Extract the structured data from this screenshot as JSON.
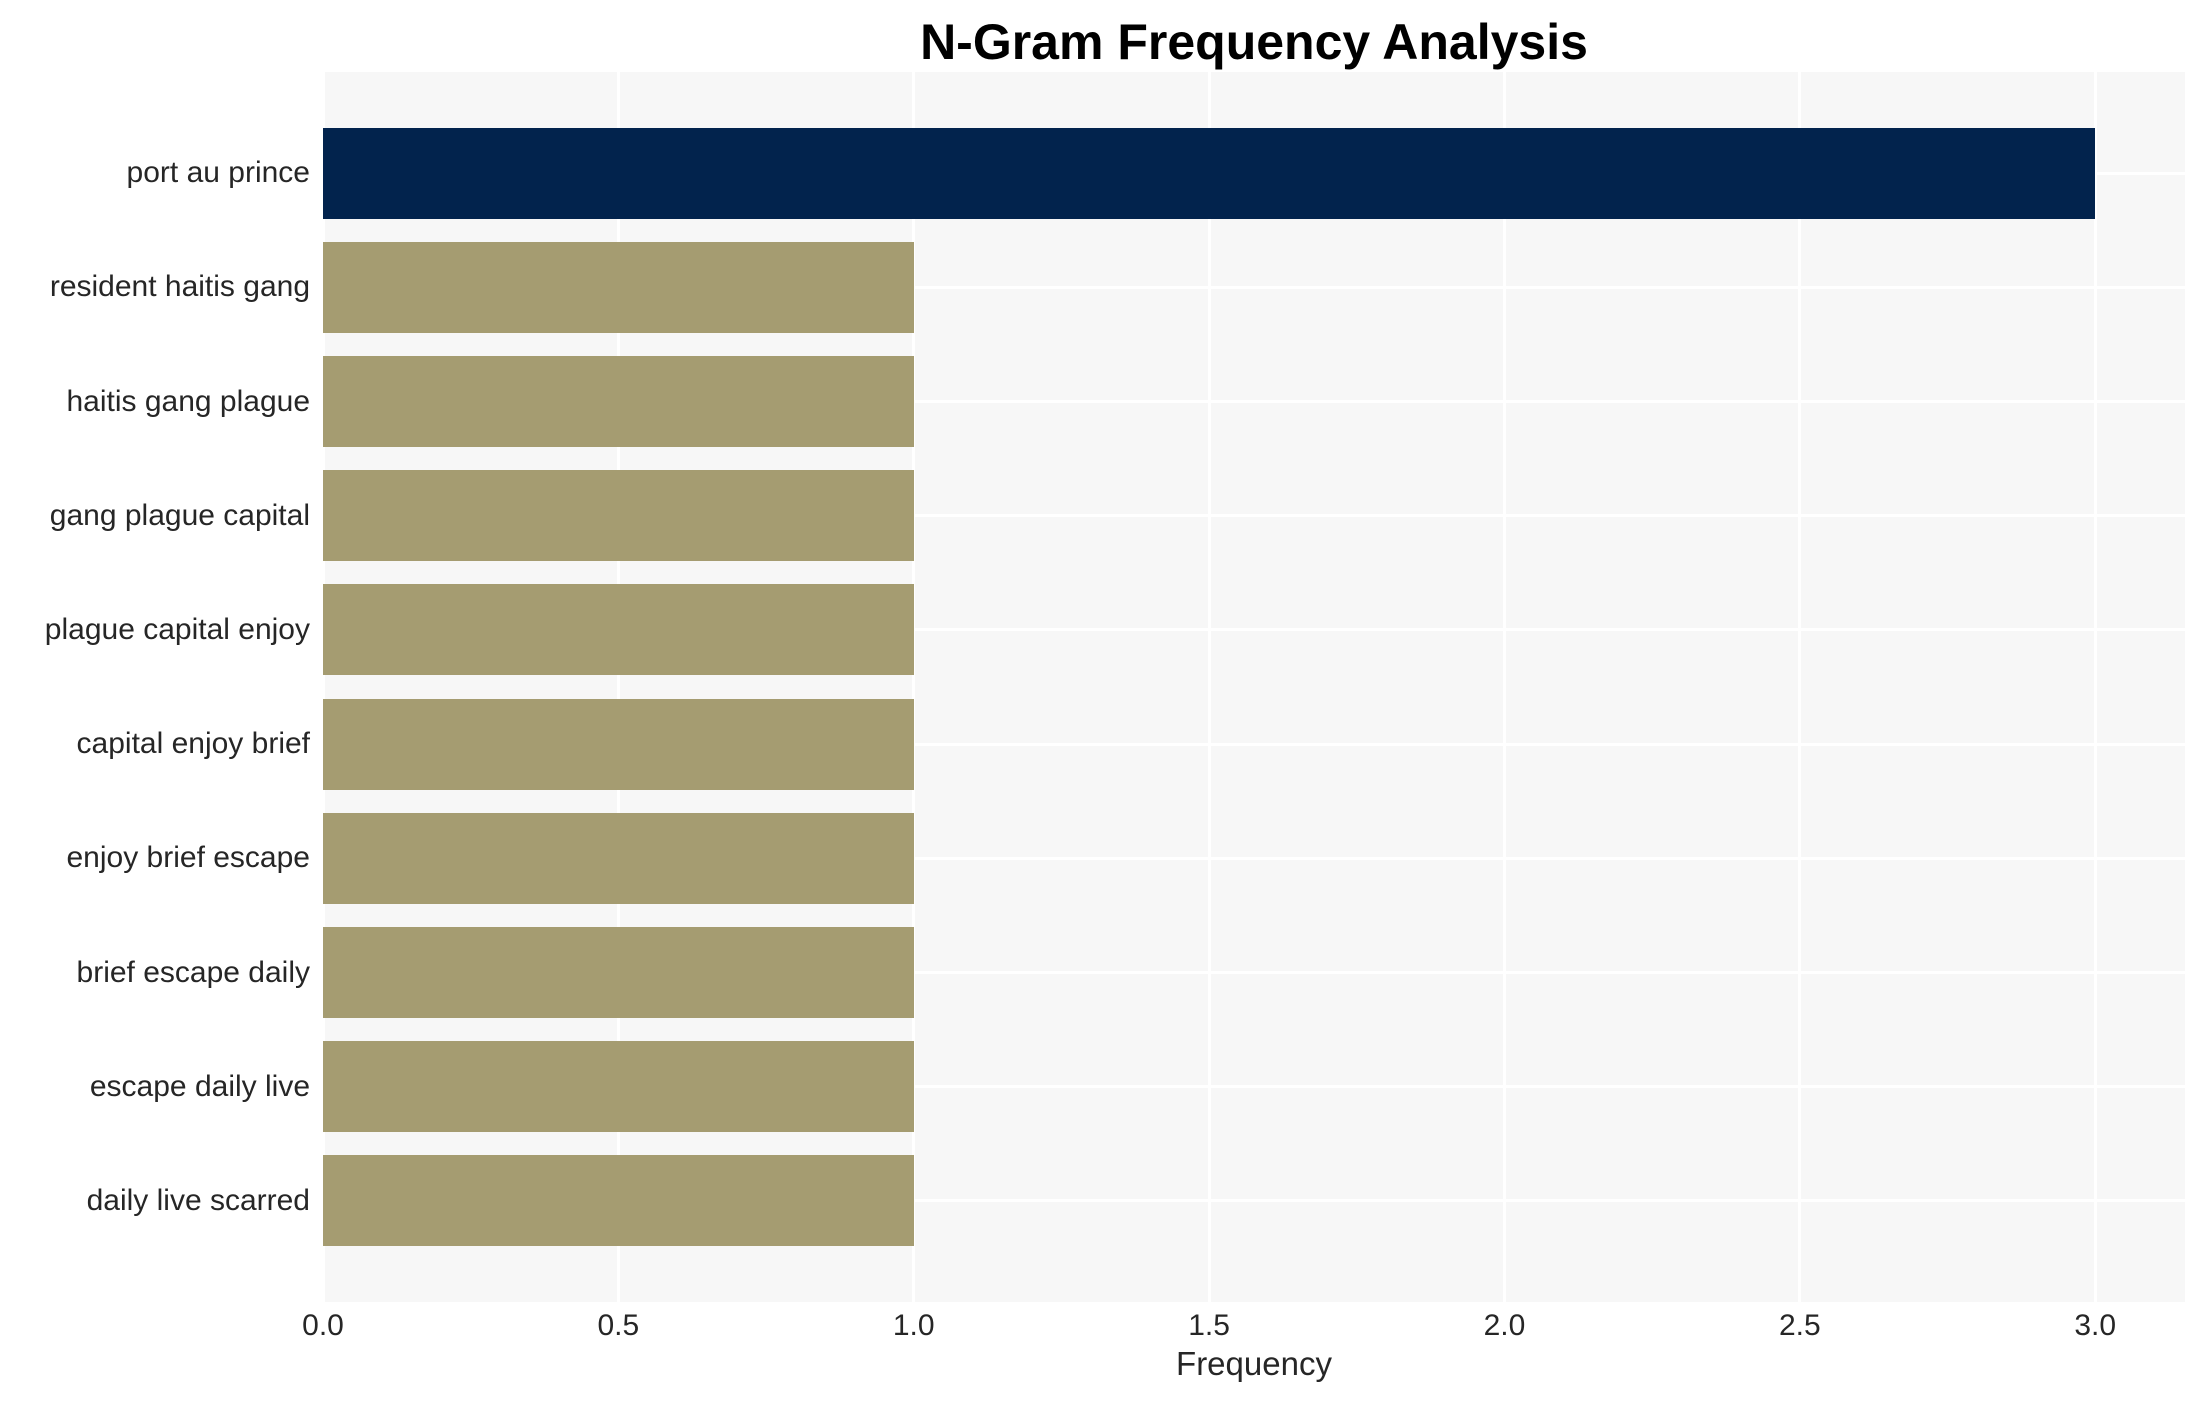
{
  "chart_data": {
    "type": "bar",
    "orientation": "horizontal",
    "title": "N-Gram Frequency Analysis",
    "xlabel": "Frequency",
    "categories": [
      "port au prince",
      "resident haitis gang",
      "haitis gang plague",
      "gang plague capital",
      "plague capital enjoy",
      "capital enjoy brief",
      "enjoy brief escape",
      "brief escape daily",
      "escape daily live",
      "daily live scarred"
    ],
    "values": [
      3,
      1,
      1,
      1,
      1,
      1,
      1,
      1,
      1,
      1
    ],
    "bar_colors": [
      "#02234d",
      "#a59c71",
      "#a59c71",
      "#a59c71",
      "#a59c71",
      "#a59c71",
      "#a59c71",
      "#a59c71",
      "#a59c71",
      "#a59c71"
    ],
    "xticks": [
      0.0,
      0.5,
      1.0,
      1.5,
      2.0,
      2.5,
      3.0
    ],
    "xtick_labels": [
      "0.0",
      "0.5",
      "1.0",
      "1.5",
      "2.0",
      "2.5",
      "3.0"
    ],
    "xlim": [
      0,
      3.152
    ],
    "grid": true,
    "legend": false,
    "plot_bg": "#f7f7f7",
    "grid_color": "#ffffff",
    "page_bg": "#ffffff",
    "text_color": "#262626",
    "title_color": "#000000"
  }
}
